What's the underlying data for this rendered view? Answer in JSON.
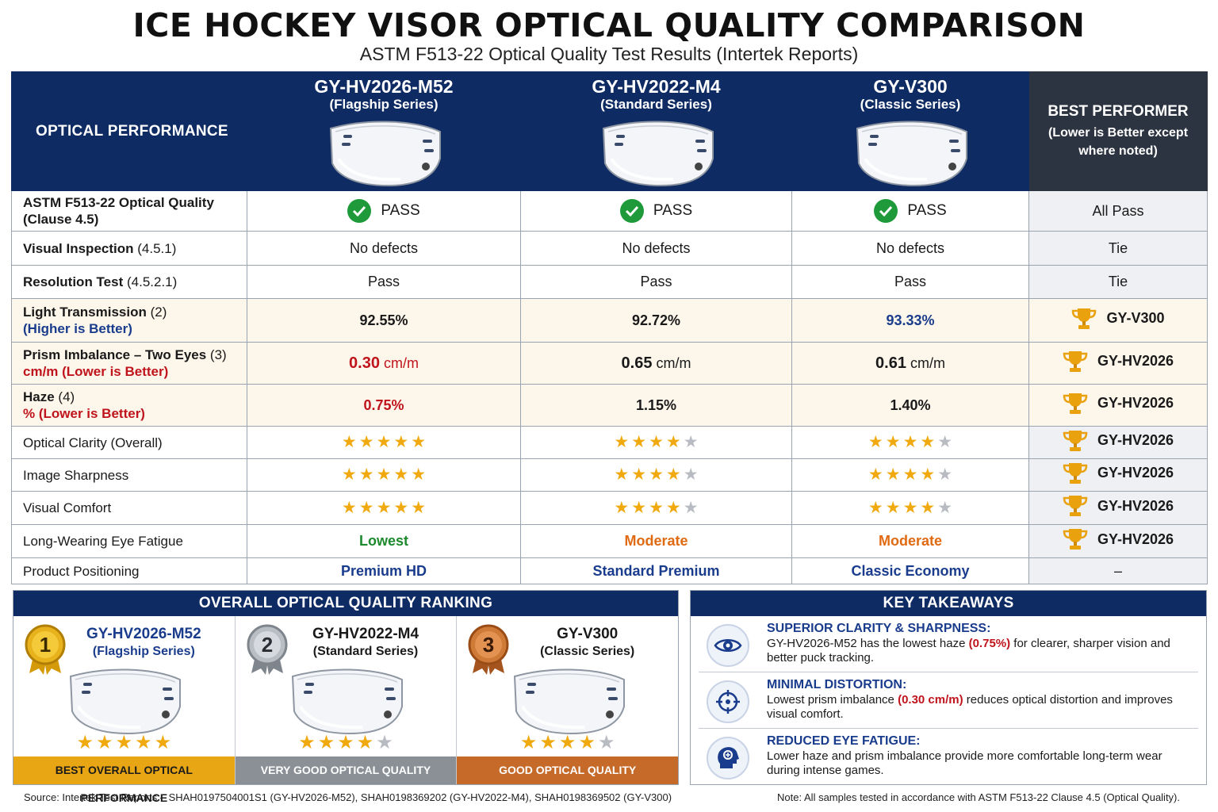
{
  "title": "ICE HOCKEY VISOR OPTICAL QUALITY COMPARISON",
  "subtitle": "ASTM F513-22 Optical Quality Test Results (Intertek Reports)",
  "table": {
    "header_label": "OPTICAL PERFORMANCE",
    "products": [
      {
        "name": "GY-HV2026-M52",
        "series": "(Flagship Series)"
      },
      {
        "name": "GY-HV2022-M4",
        "series": "(Standard Series)"
      },
      {
        "name": "GY-V300",
        "series": "(Classic Series)"
      }
    ],
    "best_header": "BEST PERFORMER",
    "best_note": "(Lower is Better except where noted)",
    "rows": {
      "astm": {
        "label": "ASTM F513-22 Optical Quality",
        "label_sub": "(Clause 4.5)",
        "values": [
          "PASS",
          "PASS",
          "PASS"
        ],
        "best": "All Pass"
      },
      "visual": {
        "label": "Visual Inspection",
        "label_ref": "(4.5.1)",
        "values": [
          "No defects",
          "No defects",
          "No defects"
        ],
        "best": "Tie"
      },
      "resolution": {
        "label": "Resolution Test",
        "label_ref": "(4.5.2.1)",
        "values": [
          "Pass",
          "Pass",
          "Pass"
        ],
        "best": "Tie"
      },
      "light": {
        "label": "Light Transmission",
        "label_ref": "(2)",
        "label_sub": "(Higher is Better)",
        "values": [
          "92.55%",
          "92.72%",
          "93.33%"
        ],
        "best": "GY-V300"
      },
      "prism": {
        "label": "Prism Imbalance – Two Eyes",
        "label_ref": "(3)",
        "label_sub": "cm/m (Lower is Better)",
        "values": [
          "0.30",
          "0.65",
          "0.61"
        ],
        "unit": "cm/m",
        "best": "GY-HV2026"
      },
      "haze": {
        "label": "Haze",
        "label_ref": "(4)",
        "label_sub": "% (Lower is Better)",
        "values": [
          "0.75%",
          "1.15%",
          "1.40%"
        ],
        "best": "GY-HV2026"
      },
      "clarity": {
        "label": "Optical Clarity (Overall)",
        "ratings": [
          5,
          4,
          4
        ],
        "best": "GY-HV2026"
      },
      "sharpness": {
        "label": "Image Sharpness",
        "ratings": [
          5,
          4,
          4
        ],
        "best": "GY-HV2026"
      },
      "comfort": {
        "label": "Visual Comfort",
        "ratings": [
          5,
          4,
          4
        ],
        "best": "GY-HV2026"
      },
      "fatigue": {
        "label": "Long-Wearing Eye Fatigue",
        "values": [
          "Lowest",
          "Moderate",
          "Moderate"
        ],
        "best": "GY-HV2026"
      },
      "positioning": {
        "label": "Product Positioning",
        "values": [
          "Premium HD",
          "Standard Premium",
          "Classic Economy"
        ],
        "best": "–"
      }
    }
  },
  "ranking": {
    "title": "OVERALL OPTICAL QUALITY RANKING",
    "items": [
      {
        "rank": "1",
        "name": "GY-HV2026-M52",
        "series": "(Flagship Series)",
        "stars": 5,
        "band": "BEST OVERALL OPTICAL PERFORMANCE"
      },
      {
        "rank": "2",
        "name": "GY-HV2022-M4",
        "series": "(Standard Series)",
        "stars": 4,
        "band": "VERY GOOD OPTICAL QUALITY"
      },
      {
        "rank": "3",
        "name": "GY-V300",
        "series": "(Classic Series)",
        "stars": 4,
        "band": "GOOD OPTICAL QUALITY"
      }
    ]
  },
  "takeaways": {
    "title": "KEY TAKEAWAYS",
    "items": [
      {
        "icon": "eye-icon",
        "title": "SUPERIOR CLARITY & SHARPNESS:",
        "pre": "GY-HV2026-M52 has the lowest haze ",
        "hl": "(0.75%)",
        "post": " for clearer, sharper vision and better puck tracking."
      },
      {
        "icon": "crosshair-icon",
        "title": "MINIMAL DISTORTION:",
        "pre": "Lowest prism imbalance ",
        "hl": "(0.30 cm/m)",
        "post": " reduces optical distortion and improves visual comfort."
      },
      {
        "icon": "brain-head-icon",
        "title": "REDUCED EYE FATIGUE:",
        "pre": "Lower haze and prism imbalance provide more comfortable long-term wear during intense games.",
        "hl": "",
        "post": ""
      }
    ]
  },
  "footer": {
    "source": "Source: Intertek Test Reports – SHAH0197504001S1 (GY-HV2026-M52), SHAH0198369202 (GY-HV2022-M4), SHAH0198369502 (GY-V300)",
    "note": "Note: All samples tested in accordance with ASTM F513-22 Clause 4.5 (Optical Quality)."
  },
  "colors": {
    "navy": "#0f2b63",
    "accent_blue": "#1a3c8c",
    "red": "#c0141c",
    "green": "#1d8a2e",
    "orange": "#e06a12",
    "gold": "#f0a90f"
  }
}
